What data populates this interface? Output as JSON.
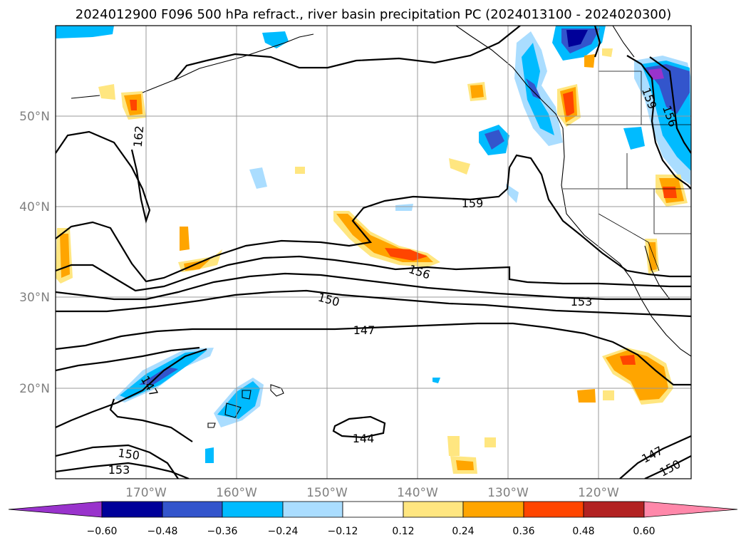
{
  "title": "2024012900 F096 500 hPa refract., river basin precipitation PC (2024013100 - 2024020300)",
  "lat_labels": [
    "50°N",
    "40°N",
    "30°N",
    "20°N"
  ],
  "lon_labels": [
    "170°W",
    "160°W",
    "150°W",
    "140°W",
    "130°W",
    "120°W"
  ],
  "contour_labels": [
    "162",
    "159",
    "156",
    "156",
    "159",
    "150",
    "153",
    "147",
    "147",
    "150",
    "153",
    "144",
    "147",
    "150"
  ],
  "colorbar": {
    "ticks": [
      "−0.60",
      "−0.48",
      "−0.36",
      "−0.24",
      "−0.12",
      "0.12",
      "0.24",
      "0.36",
      "0.48",
      "0.60"
    ],
    "colors": {
      "under": "#9933cc",
      "b1": "#000099",
      "b2": "#3355cc",
      "b3": "#00bbff",
      "b4": "#aaddff",
      "b5": "#ffffff",
      "b6": "#ffe680",
      "b7": "#ffa500",
      "b8": "#ff4500",
      "b9": "#b22222",
      "over": "#ff88aa"
    }
  }
}
